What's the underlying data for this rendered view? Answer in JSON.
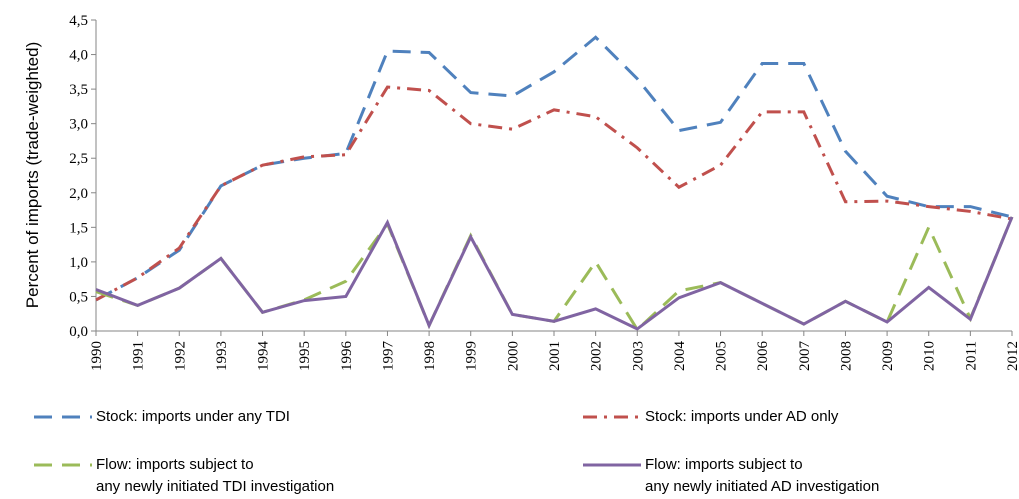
{
  "chart_data": {
    "type": "line",
    "y_label": "Percent of imports (trade-weighted)",
    "categories": [
      "1990",
      "1991",
      "1992",
      "1993",
      "1994",
      "1995",
      "1996",
      "1997",
      "1998",
      "1999",
      "2000",
      "2001",
      "2002",
      "2003",
      "2004",
      "2005",
      "2006",
      "2007",
      "2008",
      "2009",
      "2010",
      "2011",
      "2012"
    ],
    "series": [
      {
        "name": "Stock: imports under any TDI",
        "color": "#4f81bd",
        "style": "dashed",
        "values": [
          0.45,
          0.77,
          1.17,
          2.1,
          2.4,
          2.5,
          2.57,
          4.05,
          4.03,
          3.45,
          3.4,
          3.75,
          4.25,
          3.65,
          2.9,
          3.02,
          3.87,
          3.87,
          2.6,
          1.95,
          1.8,
          1.8,
          1.65
        ]
      },
      {
        "name": "Stock: imports under AD only",
        "color": "#c0504d",
        "style": "dash-dot",
        "values": [
          0.45,
          0.77,
          1.2,
          2.1,
          2.4,
          2.52,
          2.55,
          3.53,
          3.48,
          3.0,
          2.92,
          3.2,
          3.1,
          2.65,
          2.08,
          2.4,
          3.17,
          3.17,
          1.87,
          1.88,
          1.8,
          1.73,
          1.62
        ]
      },
      {
        "name": "Flow: imports subject to\nany newly initiated TDI investigation",
        "color": "#9bbb59",
        "style": "dashed",
        "values": [
          0.57,
          0.37,
          0.62,
          1.05,
          0.27,
          0.45,
          0.72,
          1.55,
          0.08,
          1.38,
          0.24,
          0.14,
          1.0,
          0.02,
          0.58,
          0.7,
          0.4,
          0.1,
          0.43,
          0.13,
          1.5,
          0.18,
          1.65
        ]
      },
      {
        "name": "Flow: imports subject to\nany newly initiated AD investigation",
        "color": "#8064a2",
        "style": "solid",
        "values": [
          0.6,
          0.37,
          0.62,
          1.05,
          0.27,
          0.44,
          0.5,
          1.57,
          0.08,
          1.36,
          0.24,
          0.14,
          0.32,
          0.03,
          0.48,
          0.7,
          0.4,
          0.1,
          0.43,
          0.13,
          0.63,
          0.17,
          1.65
        ]
      }
    ],
    "ylim": [
      0,
      4.5
    ],
    "yticks": [
      {
        "value": 0,
        "label": "0,0"
      },
      {
        "value": 0.5,
        "label": "0,5"
      },
      {
        "value": 1,
        "label": "1,0"
      },
      {
        "value": 1.5,
        "label": "1,5"
      },
      {
        "value": 2,
        "label": "2,0"
      },
      {
        "value": 2.5,
        "label": "2,5"
      },
      {
        "value": 3,
        "label": "3,0"
      },
      {
        "value": 3.5,
        "label": "3,5"
      },
      {
        "value": 4,
        "label": "4,0"
      },
      {
        "value": 4.5,
        "label": "4,5"
      }
    ],
    "grid": false
  }
}
